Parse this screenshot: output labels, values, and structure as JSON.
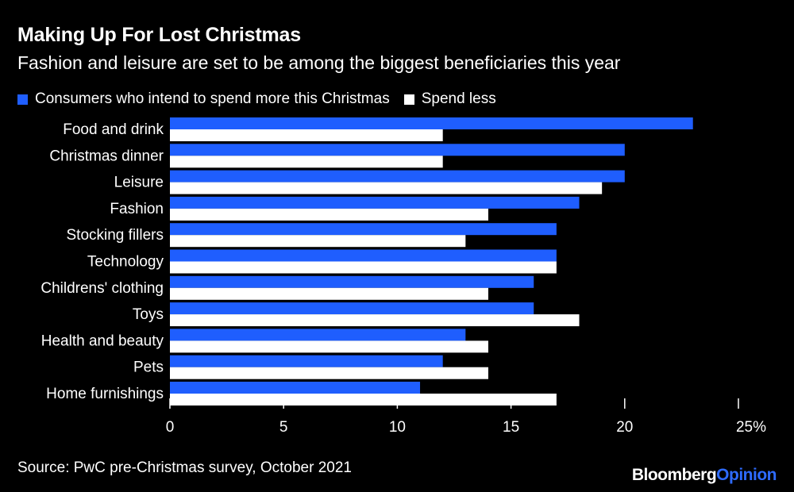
{
  "header": {
    "title": "Making Up For Lost Christmas",
    "subtitle": "Fashion and leisure are set to be among the biggest beneficiaries this year"
  },
  "footer": {
    "source": "Source: PwC pre-Christmas survey, October 2021",
    "brand_part1": "Bloomberg",
    "brand_part2": "Opinion"
  },
  "colors": {
    "background": "#000000",
    "more": "#1f5efe",
    "less": "#ffffff",
    "brand_accent": "#2e6bff"
  },
  "chart_data": {
    "type": "bar",
    "orientation": "horizontal",
    "categories": [
      "Food and drink",
      "Christmas dinner",
      "Leisure",
      "Fashion",
      "Stocking fillers",
      "Technology",
      "Childrens' clothing",
      "Toys",
      "Health and beauty",
      "Pets",
      "Home furnishings"
    ],
    "series": [
      {
        "name": "Consumers who intend to spend more this Christmas",
        "values": [
          23,
          20,
          20,
          18,
          17,
          17,
          16,
          16,
          13,
          12,
          11
        ]
      },
      {
        "name": "Spend less",
        "values": [
          12,
          12,
          19,
          14,
          13,
          17,
          14,
          18,
          14,
          14,
          17
        ]
      }
    ],
    "xlim": [
      0,
      25
    ],
    "xticks": [
      0,
      5,
      10,
      15,
      20,
      25
    ],
    "xtick_labels": [
      "0",
      "5",
      "10",
      "15",
      "20",
      "25%"
    ],
    "legend_position": "top-left",
    "grid": false
  }
}
